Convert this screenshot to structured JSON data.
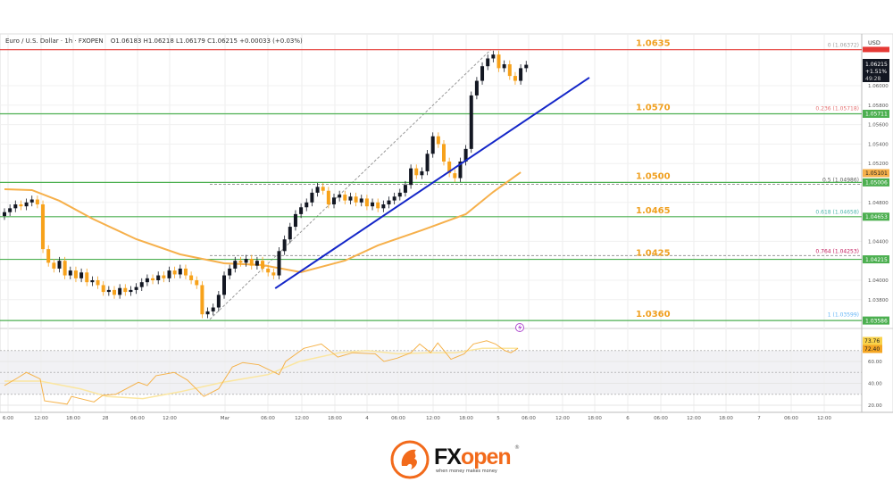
{
  "header": {
    "symbol": "Euro / U.S. Dollar · 1h · FXOPEN",
    "ohlc": "O1.06183  H1.06218  L1.06179  C1.06215  +0.00033 (+0.03%)"
  },
  "colors": {
    "up": "#131722",
    "down": "#f7a21b",
    "ma": "#f6b04b",
    "trend": "#1426c8",
    "support": "#4caf50",
    "resistance": "#e53935",
    "rsi": "#f5b24a",
    "rsi_ma": "#fbe6a0",
    "level_label": "#f0a020"
  },
  "chart_data": {
    "type": "candlestick",
    "currency": "USD",
    "interval": "1h",
    "x_tick_labels": [
      "6:00",
      "12:00",
      "18:00",
      "28",
      "06:00",
      "12:00",
      "Mar",
      "06:00",
      "12:00",
      "18:00",
      "4",
      "06:00",
      "12:00",
      "18:00",
      "5",
      "06:00",
      "12:00",
      "18:00",
      "6",
      "06:00",
      "12:00",
      "18:00",
      "7",
      "06:00",
      "12:00"
    ],
    "y_tick_labels": [
      "1.06000",
      "1.05800",
      "1.05600",
      "1.05400",
      "1.05200",
      "1.04800",
      "1.04400",
      "1.04000",
      "1.03800"
    ],
    "ylim": [
      1.0335,
      1.0655
    ],
    "first_open": 1.0466,
    "closes": [
      1.047,
      1.0474,
      1.0478,
      1.0476,
      1.048,
      1.0483,
      1.0478,
      1.0432,
      1.0418,
      1.0412,
      1.042,
      1.0405,
      1.041,
      1.0402,
      1.0408,
      1.0398,
      1.04,
      1.0395,
      1.0388,
      1.039,
      1.0385,
      1.0392,
      1.0388,
      1.039,
      1.0393,
      1.0398,
      1.0402,
      1.04,
      1.0405,
      1.0402,
      1.041,
      1.0406,
      1.0412,
      1.0405,
      1.04,
      1.0395,
      1.0365,
      1.0368,
      1.0372,
      1.0385,
      1.0405,
      1.0412,
      1.042,
      1.0418,
      1.0422,
      1.0415,
      1.042,
      1.0412,
      1.0408,
      1.0405,
      1.043,
      1.0442,
      1.0455,
      1.0468,
      1.0475,
      1.048,
      1.049,
      1.0496,
      1.0492,
      1.0478,
      1.0485,
      1.0488,
      1.0482,
      1.0486,
      1.048,
      1.0484,
      1.0476,
      1.048,
      1.0474,
      1.0478,
      1.0482,
      1.0486,
      1.049,
      1.0498,
      1.0515,
      1.0508,
      1.0512,
      1.053,
      1.0548,
      1.054,
      1.0522,
      1.051,
      1.0505,
      1.0522,
      1.0535,
      1.059,
      1.0605,
      1.062,
      1.0628,
      1.0632,
      1.0618,
      1.0622,
      1.061,
      1.0605,
      1.0618,
      1.06215
    ],
    "moving_average": [
      [
        0,
        1.04936
      ],
      [
        5,
        1.04927
      ],
      [
        10,
        1.04817
      ],
      [
        16,
        1.04633
      ],
      [
        24,
        1.04422
      ],
      [
        32,
        1.04266
      ],
      [
        40,
        1.04174
      ],
      [
        47,
        1.04156
      ],
      [
        54,
        1.04083
      ],
      [
        62,
        1.04202
      ],
      [
        68,
        1.04358
      ],
      [
        76,
        1.04514
      ],
      [
        84,
        1.04679
      ],
      [
        89,
        1.04908
      ],
      [
        94,
        1.0511
      ]
    ],
    "trendline": [
      [
        49.3,
        1.03917
      ],
      [
        106.5,
        1.06083
      ]
    ],
    "fib_line": [
      [
        37.4,
        1.03599
      ],
      [
        88.6,
        1.06372
      ]
    ],
    "levels": [
      {
        "label": "1.0635",
        "price": 1.0637,
        "kind": "resistance"
      },
      {
        "label": "1.0570",
        "price": 1.05711,
        "kind": "support"
      },
      {
        "label": "1.0500",
        "price": 1.05006,
        "kind": "support"
      },
      {
        "label": "1.0465",
        "price": 1.04653,
        "kind": "support"
      },
      {
        "label": "1.0425",
        "price": 1.04215,
        "kind": "support"
      },
      {
        "label": "1.0360",
        "price": 1.03586,
        "kind": "support"
      }
    ],
    "fib_levels": [
      {
        "label": "0 (1.06372)",
        "price": 1.06372,
        "color": "#9e9e9e"
      },
      {
        "label": "0.236 (1.05718)",
        "price": 1.05718,
        "color": "#e57373"
      },
      {
        "label": "0.5 (1.04986)",
        "price": 1.04986,
        "color": "#616161",
        "dashed": true
      },
      {
        "label": "0.618 (1.04658)",
        "price": 1.04658,
        "color": "#4db6ac"
      },
      {
        "label": "0.764 (1.04253)",
        "price": 1.04253,
        "color": "#c2185b",
        "dashed": true
      },
      {
        "label": "1 (1.03599)",
        "price": 1.03599,
        "color": "#64b5f6"
      }
    ],
    "price_badges": [
      {
        "label": "1.05711",
        "price": 1.05711,
        "color": "#4caf50"
      },
      {
        "label": "1.05101",
        "price": 1.05101,
        "color": "#f6b04b"
      },
      {
        "label": "1.05006",
        "price": 1.05006,
        "color": "#4caf50"
      },
      {
        "label": "1.04653",
        "price": 1.04653,
        "color": "#4caf50"
      },
      {
        "label": "1.04215",
        "price": 1.04215,
        "color": "#4caf50"
      },
      {
        "label": "1.03586",
        "price": 1.03586,
        "color": "#4caf50"
      }
    ],
    "last_price": {
      "price": "1.06215",
      "change": "+1.51%",
      "countdown": "49:28"
    },
    "rsi": {
      "ylim": [
        20,
        80
      ],
      "tick_labels": [
        "60.00",
        "40.00",
        "20.00"
      ],
      "band": [
        30,
        70
      ],
      "values": [
        [
          0,
          38
        ],
        [
          2.4,
          45
        ],
        [
          4,
          50
        ],
        [
          6.5,
          44
        ],
        [
          7.3,
          24
        ],
        [
          11.4,
          21
        ],
        [
          12.2,
          28
        ],
        [
          16.3,
          23
        ],
        [
          17.9,
          29
        ],
        [
          20.3,
          30
        ],
        [
          24.4,
          41
        ],
        [
          26,
          38
        ],
        [
          27.6,
          47
        ],
        [
          30.9,
          50
        ],
        [
          33.3,
          43
        ],
        [
          36.3,
          28
        ],
        [
          39,
          35
        ],
        [
          41.5,
          55
        ],
        [
          43.4,
          59
        ],
        [
          46.3,
          57
        ],
        [
          50,
          48
        ],
        [
          51.2,
          60
        ],
        [
          54.5,
          72
        ],
        [
          57.7,
          76
        ],
        [
          60.7,
          64
        ],
        [
          63.4,
          68
        ],
        [
          67.5,
          67
        ],
        [
          69.1,
          60
        ],
        [
          71.5,
          63
        ],
        [
          74,
          68
        ],
        [
          75.6,
          76
        ],
        [
          77.6,
          68
        ],
        [
          78.9,
          77
        ],
        [
          81.3,
          62
        ],
        [
          83.7,
          67
        ],
        [
          85.4,
          76
        ],
        [
          87.8,
          79
        ],
        [
          89.4,
          76
        ],
        [
          91.1,
          70
        ],
        [
          92.2,
          68
        ],
        [
          93.5,
          72
        ]
      ],
      "ma": [
        [
          0,
          42
        ],
        [
          6.5,
          42
        ],
        [
          13.8,
          35
        ],
        [
          18.7,
          28
        ],
        [
          25.2,
          26
        ],
        [
          31.7,
          32
        ],
        [
          39.8,
          41
        ],
        [
          48,
          48
        ],
        [
          53.7,
          60
        ],
        [
          61,
          68
        ],
        [
          66,
          70
        ],
        [
          71.5,
          67
        ],
        [
          77.2,
          68
        ],
        [
          82.1,
          68
        ],
        [
          87,
          72
        ],
        [
          93.5,
          72
        ]
      ],
      "badges": [
        {
          "label": "73.76",
          "color": "#f9d24a"
        },
        {
          "label": "72.40",
          "color": "#f5a623"
        }
      ]
    }
  },
  "logo": {
    "brand_fx": "FX",
    "brand_open": "open",
    "tagline": "when money  makes money",
    "reg": "®"
  }
}
